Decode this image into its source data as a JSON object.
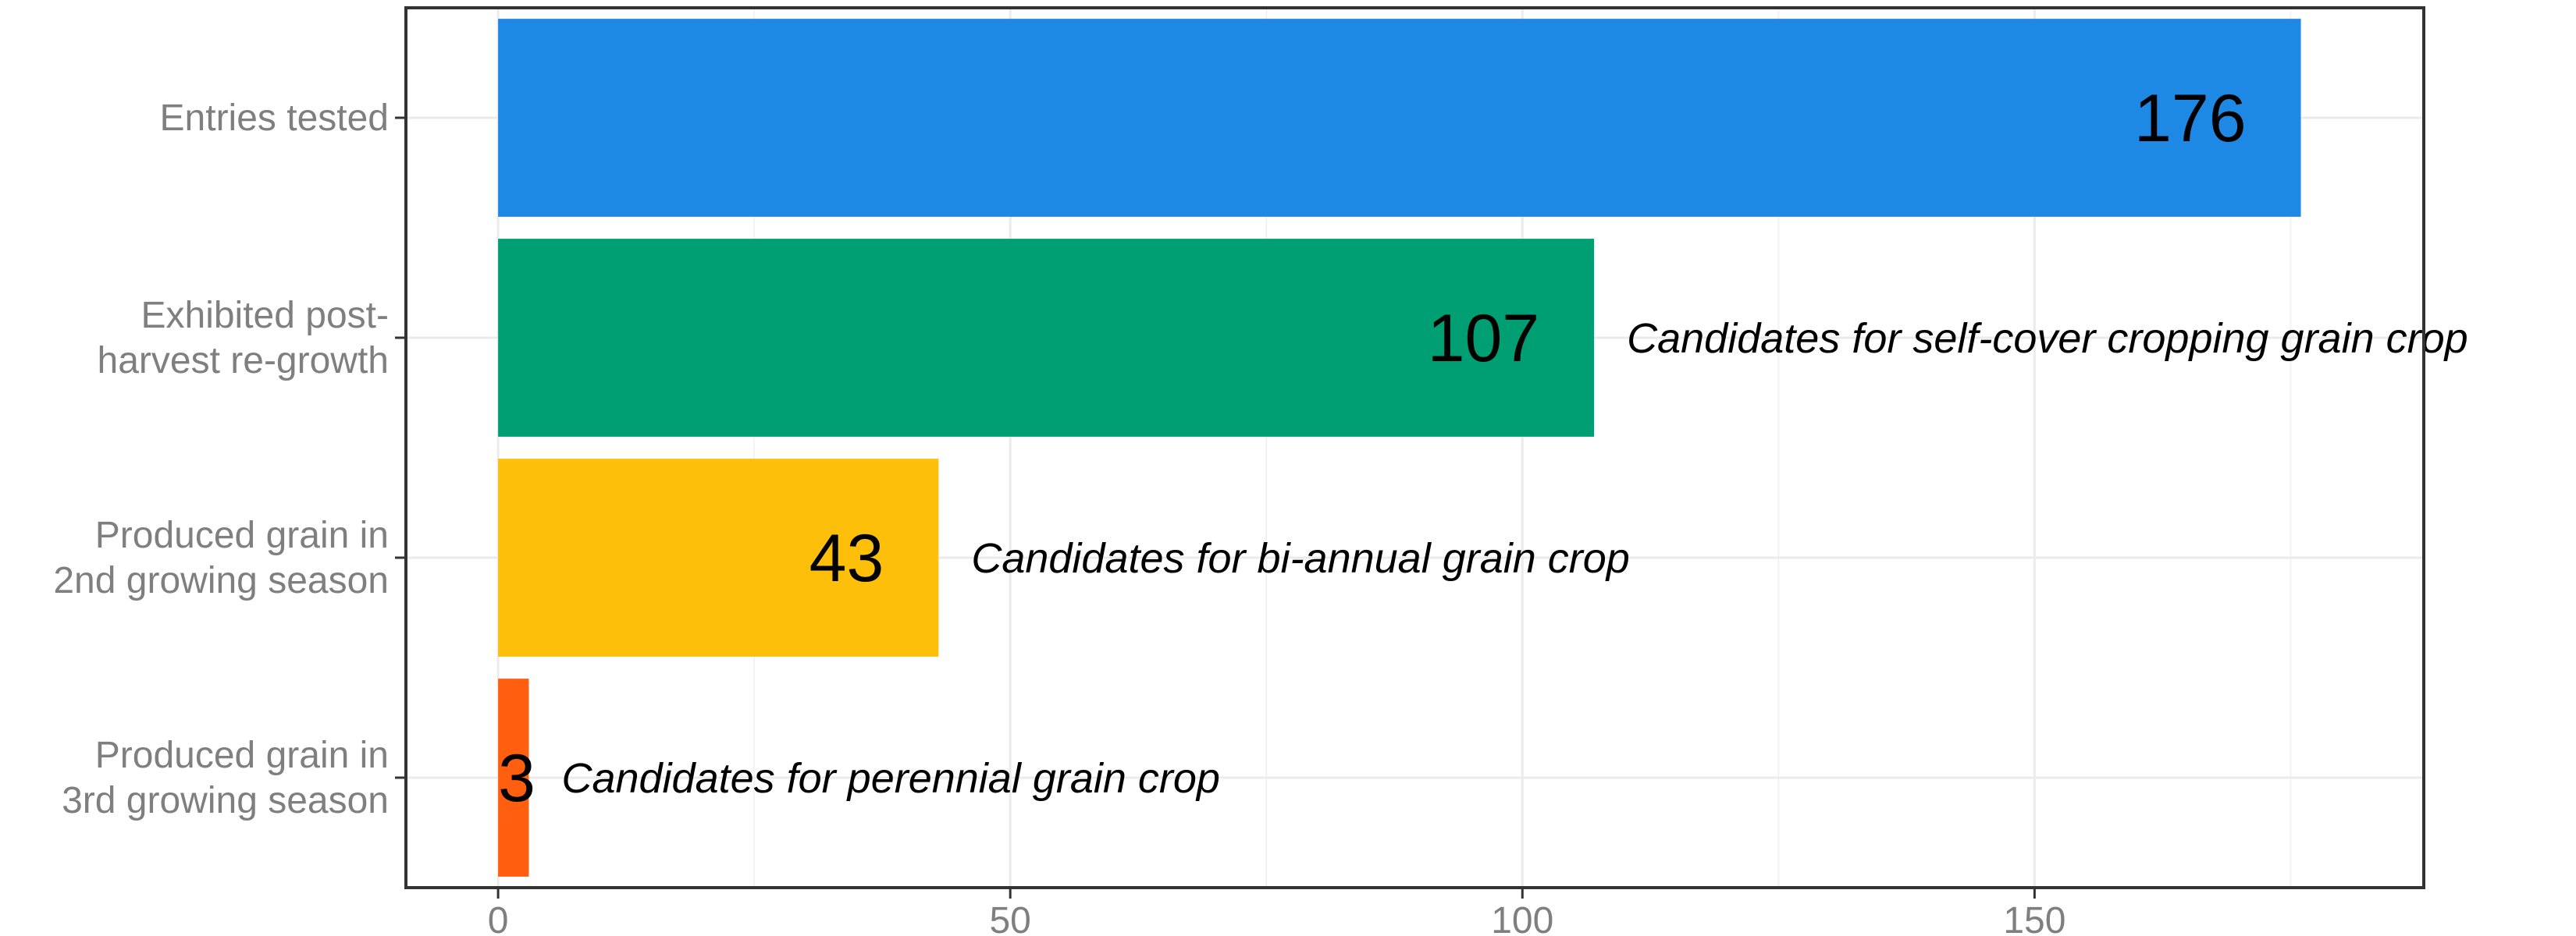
{
  "chart_data": {
    "type": "bar",
    "orientation": "horizontal",
    "categories": [
      "Entries tested",
      "Exhibited post-harvest re-growth",
      "Produced grain in 2nd growing season",
      "Produced grain in 3rd growing season"
    ],
    "category_label_lines": [
      [
        "Entries tested"
      ],
      [
        "Exhibited post-",
        "harvest re-growth"
      ],
      [
        "Produced grain in",
        "2nd growing season"
      ],
      [
        "Produced grain in",
        "3rd growing season"
      ]
    ],
    "values": [
      176,
      107,
      43,
      3
    ],
    "value_labels": [
      "176",
      "107",
      "43",
      "3"
    ],
    "annotations": [
      "",
      "Candidates for self-cover cropping grain crop",
      "Candidates for bi-annual grain crop",
      "Candidates for perennial grain crop"
    ],
    "bar_colors": [
      "#1e88e5",
      "#009e73",
      "#fdbf0a",
      "#ff5f0f"
    ],
    "x_ticks": [
      0,
      50,
      100,
      150
    ],
    "x_tick_labels": [
      "0",
      "50",
      "100",
      "150"
    ],
    "xlim": [
      -9,
      188
    ],
    "xlabel": "",
    "ylabel": "",
    "title": "",
    "grid": true,
    "legend": "none"
  }
}
